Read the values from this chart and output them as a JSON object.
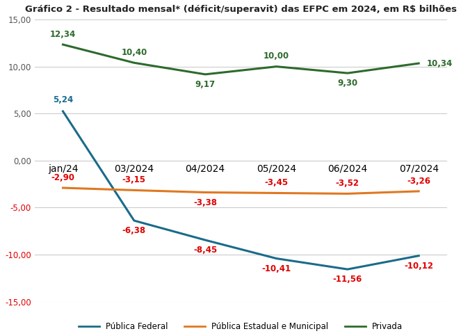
{
  "title": "Gráfico 2 - Resultado mensal* (déficit/superavit) das EFPC em 2024, em R$ bilhões",
  "categories": [
    "jan/24",
    "03/2024",
    "04/2024",
    "05/2024",
    "06/2024",
    "07/2024"
  ],
  "publica_federal": [
    5.24,
    -6.38,
    -8.45,
    -10.41,
    -11.56,
    -10.12
  ],
  "publica_estadual": [
    -2.9,
    -3.15,
    -3.38,
    -3.45,
    -3.52,
    -3.26
  ],
  "privada": [
    12.34,
    10.4,
    9.17,
    10.0,
    9.3,
    10.34
  ],
  "color_federal": "#1a6b8a",
  "color_estadual": "#e07820",
  "color_privada": "#2d6a2d",
  "label_federal": "Pública Federal",
  "label_estadual": "Pública Estadual e Municipal",
  "label_privada": "Privada",
  "ylim": [
    -15,
    15
  ],
  "yticks": [
    -15,
    -10,
    -5,
    0,
    5,
    10,
    15
  ],
  "bg_color": "#ffffff",
  "grid_color": "#cccccc",
  "annotation_color_red": "#e00000",
  "annotation_color_blue": "#1a6b8a",
  "annotation_color_green": "#2d6a2d",
  "tick_color_positive": "#555555",
  "tick_color_negative": "#e00000"
}
